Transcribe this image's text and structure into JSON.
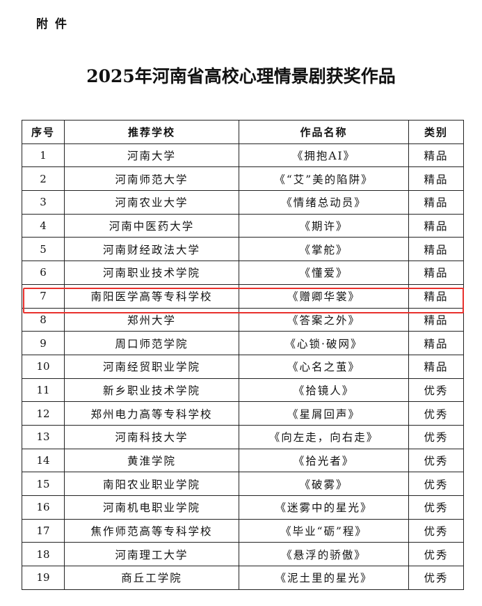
{
  "attachment_label": "附件",
  "title": "2025年河南省高校心理情景剧获奖作品",
  "table": {
    "headers": [
      "序号",
      "推荐学校",
      "作品名称",
      "类别"
    ],
    "rows": [
      [
        "1",
        "河南大学",
        "《拥抱AI》",
        "精品"
      ],
      [
        "2",
        "河南师范大学",
        "《“艾”美的陷阱》",
        "精品"
      ],
      [
        "3",
        "河南农业大学",
        "《情绪总动员》",
        "精品"
      ],
      [
        "4",
        "河南中医药大学",
        "《期许》",
        "精品"
      ],
      [
        "5",
        "河南财经政法大学",
        "《掌舵》",
        "精品"
      ],
      [
        "6",
        "河南职业技术学院",
        "《懂爱》",
        "精品"
      ],
      [
        "7",
        "南阳医学高等专科学校",
        "《赠卿华裳》",
        "精品"
      ],
      [
        "8",
        "郑州大学",
        "《答案之外》",
        "精品"
      ],
      [
        "9",
        "周口师范学院",
        "《心锁·破网》",
        "精品"
      ],
      [
        "10",
        "河南经贸职业学院",
        "《心名之茧》",
        "精品"
      ],
      [
        "11",
        "新乡职业技术学院",
        "《拾镜人》",
        "优秀"
      ],
      [
        "12",
        "郑州电力高等专科学校",
        "《星屑回声》",
        "优秀"
      ],
      [
        "13",
        "河南科技大学",
        "《向左走，向右走》",
        "优秀"
      ],
      [
        "14",
        "黄淮学院",
        "《拾光者》",
        "优秀"
      ],
      [
        "15",
        "南阳农业职业学院",
        "《破雾》",
        "优秀"
      ],
      [
        "16",
        "河南机电职业学院",
        "《迷雾中的星光》",
        "优秀"
      ],
      [
        "17",
        "焦作师范高等专科学校",
        "《毕业“砺”程》",
        "优秀"
      ],
      [
        "18",
        "河南理工大学",
        "《悬浮的骄傲》",
        "优秀"
      ],
      [
        "19",
        "商丘工学院",
        "《泥土里的星光》",
        "优秀"
      ]
    ],
    "highlighted_row": 7,
    "highlight_color": "#e8302c"
  }
}
